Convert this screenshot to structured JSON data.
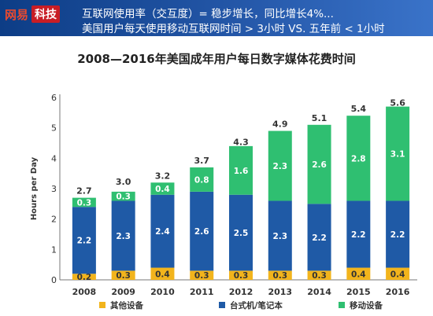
{
  "header": {
    "logo_mark": "网易",
    "logo_text": "科技",
    "line1": "互联网使用率（交互度）= 稳步增长，同比增长4%...",
    "line2": "美国用户每天使用移动互联网时间 > 3小时   VS.  五年前 < 1小时"
  },
  "colors": {
    "other": "#f2b41c",
    "desktop": "#1f5aa6",
    "mobile": "#2fbf71",
    "header": "#1a4b95",
    "axis": "#777777"
  },
  "chart_data": {
    "type": "bar",
    "stacked": true,
    "title": "2008—2016年美国成年用户每日数字媒体花费时间",
    "ylabel": "Hours per Day",
    "xlabel": "",
    "ylim": [
      0,
      6
    ],
    "yticks": [
      "0",
      "1",
      "2",
      "3",
      "4",
      "5",
      "6"
    ],
    "categories": [
      "2008",
      "2009",
      "2010",
      "2011",
      "2012",
      "2013",
      "2014",
      "2015",
      "2016"
    ],
    "series": [
      {
        "name": "其他设备",
        "values": [
          0.2,
          0.3,
          0.4,
          0.3,
          0.3,
          0.3,
          0.3,
          0.4,
          0.4
        ]
      },
      {
        "name": "台式机/笔记本",
        "values": [
          2.2,
          2.3,
          2.4,
          2.6,
          2.5,
          2.3,
          2.2,
          2.2,
          2.2
        ]
      },
      {
        "name": "移动设备",
        "values": [
          0.3,
          0.3,
          0.4,
          0.8,
          1.6,
          2.3,
          2.6,
          2.8,
          3.1
        ]
      }
    ],
    "series_labels": [
      [
        "0.2",
        "0.3",
        "0.4",
        "0.3",
        "0.3",
        "0.3",
        "0.3",
        "0.4",
        "0.4"
      ],
      [
        "2.2",
        "2.3",
        "2.4",
        "2.6",
        "2.5",
        "2.3",
        "2.2",
        "2.2",
        "2.2"
      ],
      [
        "0.3",
        "0.3",
        "0.4",
        "0.8",
        "1.6",
        "2.3",
        "2.6",
        "2.8",
        "3.1"
      ]
    ],
    "totals": [
      2.7,
      3.0,
      3.2,
      3.7,
      4.3,
      4.9,
      5.1,
      5.4,
      5.6
    ],
    "total_labels": [
      "2.7",
      "3.0",
      "3.2",
      "3.7",
      "4.3",
      "4.9",
      "5.1",
      "5.4",
      "5.6"
    ],
    "legend_position": "bottom",
    "grid": false
  }
}
